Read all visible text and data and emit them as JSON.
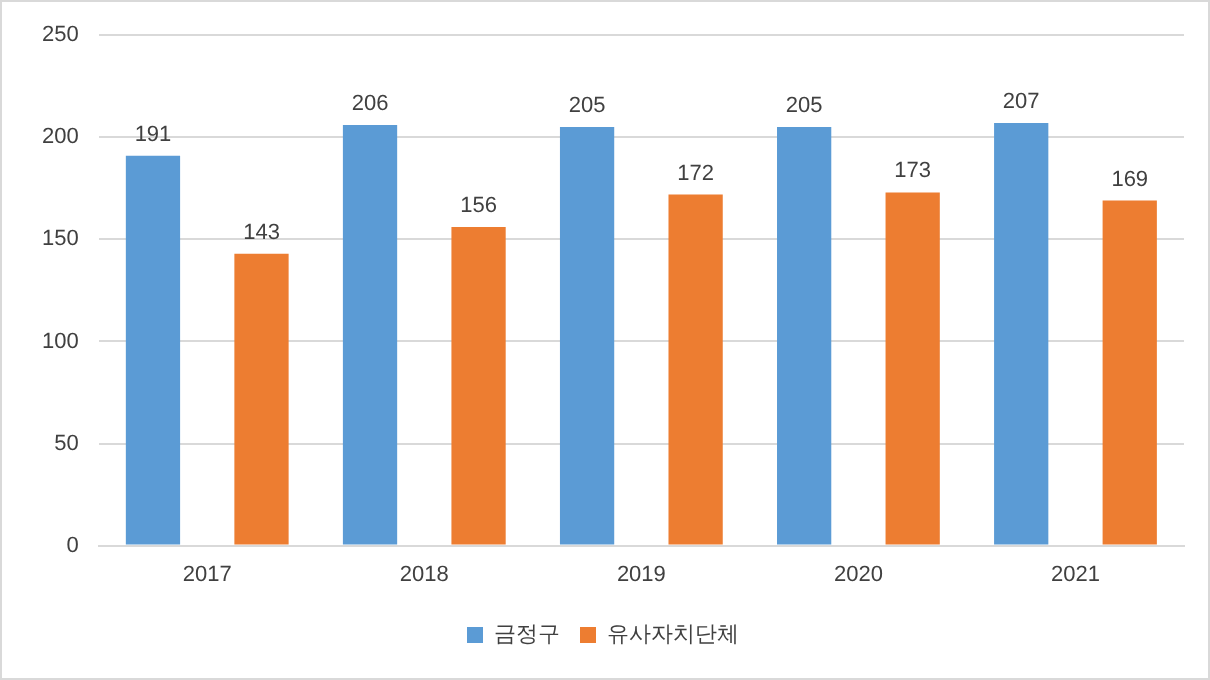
{
  "chart_data": {
    "type": "bar",
    "categories": [
      "2017",
      "2018",
      "2019",
      "2020",
      "2021"
    ],
    "series": [
      {
        "name": "금정구",
        "color": "#5b9bd5",
        "values": [
          191,
          206,
          205,
          205,
          207
        ]
      },
      {
        "name": "유사자치단체",
        "color": "#ed7d31",
        "values": [
          143,
          156,
          172,
          173,
          169
        ]
      }
    ],
    "ylim": [
      0,
      250
    ],
    "yticks": [
      0,
      50,
      100,
      150,
      200,
      250
    ],
    "grid": "y",
    "legend": "bottom",
    "data_labels": true
  }
}
